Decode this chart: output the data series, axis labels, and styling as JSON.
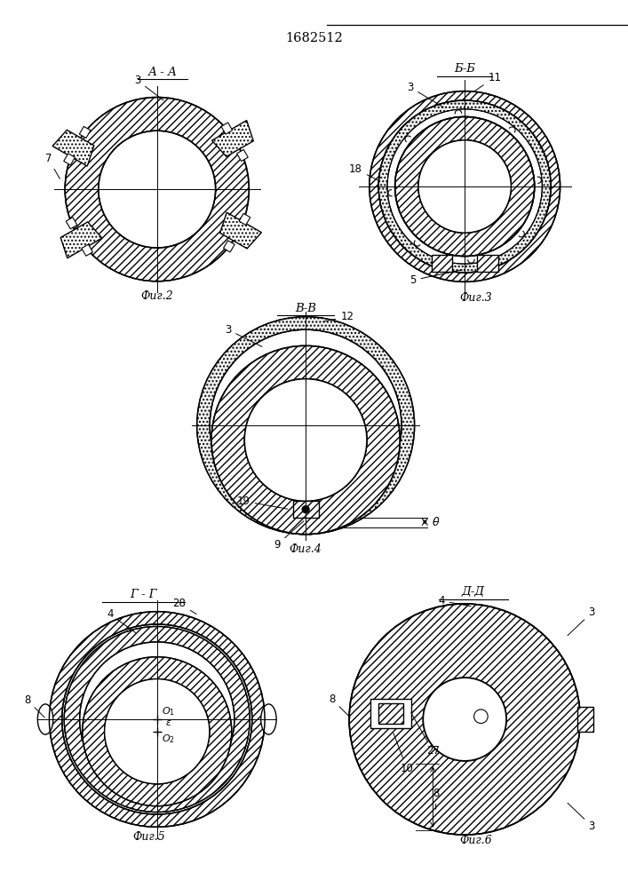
{
  "title": "1682512",
  "fig2_label": "А - А",
  "fig3_label": "Б-Б",
  "fig4_label": "В-В",
  "fig5_label": "Г - Г",
  "fig6_label": "Д-Д",
  "caption2": "Фиг.2",
  "caption3": "Фиг.3",
  "caption4": "Фиг.4",
  "caption5": "Фиг.5",
  "caption6": "Фиг.6",
  "bg_color": "#ffffff"
}
